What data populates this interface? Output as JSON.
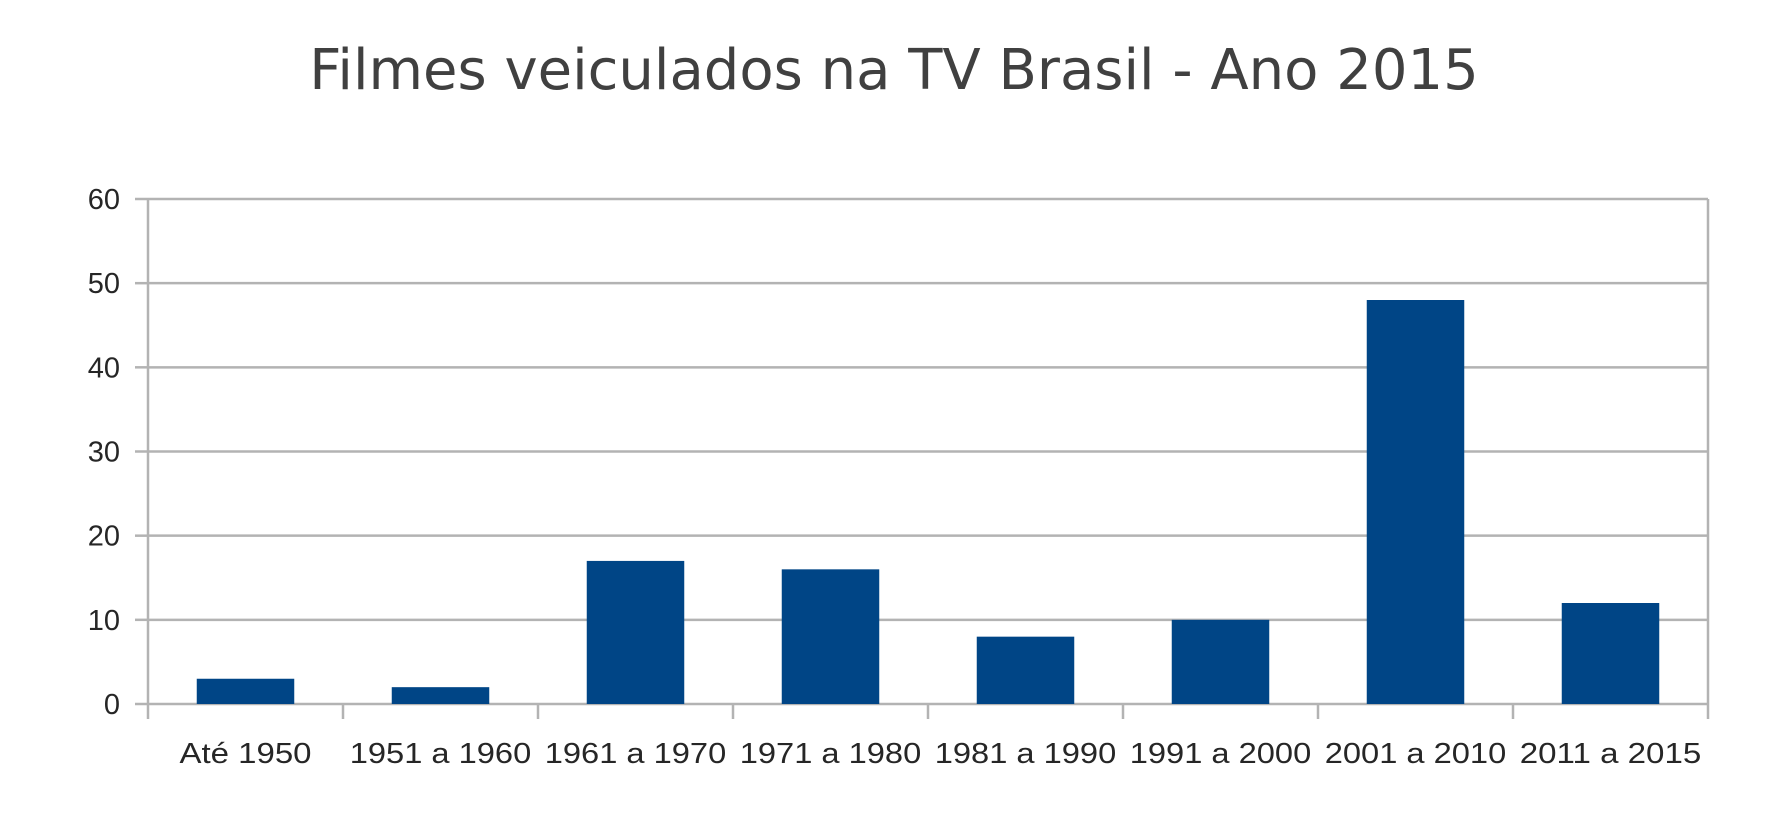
{
  "chart_data": {
    "type": "bar",
    "title": "Filmes veiculados na TV Brasil - Ano 2015",
    "xlabel": "",
    "ylabel": "",
    "categories": [
      "Até 1950",
      "1951 a 1960",
      "1961 a 1970",
      "1971 a 1980",
      "1981 a 1990",
      "1991 a 2000",
      "2001 a 2010",
      "2011 a 2015"
    ],
    "values": [
      3,
      2,
      17,
      16,
      8,
      10,
      48,
      12
    ],
    "ylim": [
      0,
      60
    ],
    "yticks": [
      "0",
      "10",
      "20",
      "30",
      "40",
      "50",
      "60"
    ],
    "grid": true,
    "legend": "none",
    "colors": {
      "bar": "#004586",
      "grid": "#b3b3b3",
      "axis": "#b3b3b3",
      "title": "#404040"
    }
  }
}
